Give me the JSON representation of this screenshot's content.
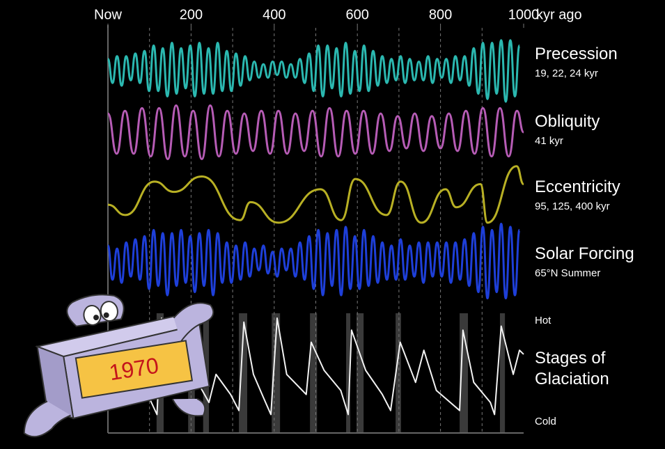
{
  "chart_data": {
    "type": "line",
    "xlabel": "kyr ago",
    "xlim": [
      0,
      1000
    ],
    "xticks": [
      {
        "value": 0,
        "label": "Now"
      },
      200,
      400,
      600,
      800,
      1000
    ],
    "minor_xticks": [
      100,
      200,
      300,
      400,
      500,
      600,
      700,
      800,
      900
    ],
    "ylim": [
      -1.3,
      1.3
    ],
    "series": [
      {
        "name": "Precession",
        "note": "19, 22, 24 kyr",
        "color": "#2bb8b0",
        "smooth": true,
        "x": [
          0,
          11,
          22,
          33,
          44,
          55,
          66,
          77,
          88,
          99,
          110,
          121,
          132,
          143,
          154,
          165,
          176,
          187,
          198,
          209,
          220,
          231,
          242,
          253,
          264,
          275,
          286,
          297,
          308,
          319,
          330,
          341,
          352,
          363,
          374,
          385,
          396,
          407,
          418,
          429,
          440,
          451,
          462,
          473,
          484,
          495,
          506,
          517,
          528,
          539,
          550,
          561,
          572,
          583,
          594,
          605,
          616,
          627,
          638,
          649,
          660,
          671,
          682,
          693,
          704,
          715,
          726,
          737,
          748,
          759,
          770,
          781,
          792,
          803,
          814,
          825,
          836,
          847,
          858,
          869,
          880,
          891,
          902,
          913,
          924,
          935,
          946,
          957,
          968,
          979,
          990
        ],
        "values": [
          0.4,
          -0.5,
          0.5,
          -0.6,
          0.5,
          -0.4,
          0.6,
          -0.5,
          0.7,
          -0.8,
          0.9,
          -0.8,
          0.8,
          -1,
          1,
          -0.9,
          0.8,
          -0.7,
          0.9,
          -1,
          1,
          -0.9,
          0.8,
          -0.9,
          1,
          -0.8,
          0.7,
          -0.8,
          0.6,
          -0.6,
          0.5,
          -0.4,
          0.3,
          -0.3,
          0.2,
          -0.3,
          0.3,
          -0.2,
          0.3,
          -0.3,
          0.2,
          -0.3,
          0.4,
          -0.5,
          0.6,
          -0.8,
          0.9,
          -1,
          0.9,
          -0.7,
          0.8,
          -1,
          1,
          -0.9,
          0.7,
          -0.8,
          0.9,
          -0.8,
          0.7,
          -0.6,
          0.5,
          -0.5,
          0.4,
          -0.4,
          0.5,
          -0.5,
          0.4,
          -0.4,
          0.3,
          -0.4,
          0.5,
          -0.5,
          0.4,
          -0.3,
          0.4,
          -0.5,
          0.5,
          -0.4,
          0.5,
          -0.6,
          0.8,
          -0.9,
          1,
          -1.1,
          1,
          -0.9,
          1.1,
          -1.2,
          1.1,
          -1,
          0.9
        ]
      },
      {
        "name": "Obliquity",
        "note": "41 kyr",
        "color": "#b65cb5",
        "smooth": true,
        "x": [
          0,
          21,
          41,
          62,
          82,
          103,
          123,
          144,
          164,
          185,
          205,
          226,
          246,
          267,
          287,
          308,
          328,
          349,
          369,
          390,
          410,
          431,
          451,
          472,
          492,
          513,
          533,
          554,
          574,
          595,
          615,
          636,
          656,
          677,
          697,
          718,
          738,
          759,
          779,
          800,
          820,
          841,
          861,
          882,
          902,
          923,
          943,
          964,
          984,
          1000
        ],
        "values": [
          0.7,
          -0.8,
          0.8,
          -0.8,
          0.9,
          -0.9,
          0.9,
          -1,
          1,
          -0.9,
          0.8,
          -1,
          1,
          -0.9,
          0.8,
          -0.8,
          0.7,
          -0.7,
          0.8,
          -0.8,
          0.8,
          -0.8,
          0.7,
          -0.7,
          0.8,
          -0.9,
          0.9,
          -0.9,
          0.8,
          -0.8,
          0.8,
          -0.8,
          0.7,
          -0.7,
          0.6,
          -0.6,
          0.7,
          -0.7,
          0.6,
          -0.6,
          0.7,
          -0.7,
          0.8,
          -0.8,
          0.9,
          -0.9,
          0.9,
          -0.9,
          0.8,
          0
        ]
      },
      {
        "name": "Eccentricity",
        "note": "95, 125, 400 kyr",
        "color": "#b8b024",
        "smooth": true,
        "x": [
          0,
          42,
          112,
          159,
          226,
          318,
          343,
          410,
          511,
          561,
          595,
          670,
          704,
          754,
          812,
          838,
          896,
          913,
          983,
          1000
        ],
        "values": [
          -0.3,
          -0.7,
          0.6,
          0.2,
          0.8,
          -0.9,
          -0.2,
          -1,
          0.3,
          -0.9,
          0.7,
          -0.7,
          0.6,
          -1,
          0.3,
          -0.4,
          0.5,
          -1,
          1.2,
          0.5
        ]
      },
      {
        "name": "Solar Forcing",
        "note": "65°N Summer",
        "color": "#1e3fd9",
        "smooth": true,
        "x": [
          0,
          11,
          22,
          33,
          44,
          55,
          66,
          77,
          88,
          99,
          110,
          121,
          132,
          143,
          154,
          165,
          176,
          187,
          198,
          209,
          220,
          231,
          242,
          253,
          264,
          275,
          286,
          297,
          308,
          319,
          330,
          341,
          352,
          363,
          374,
          385,
          396,
          407,
          418,
          429,
          440,
          451,
          462,
          473,
          484,
          495,
          506,
          517,
          528,
          539,
          550,
          561,
          572,
          583,
          594,
          605,
          616,
          627,
          638,
          649,
          660,
          671,
          682,
          693,
          704,
          715,
          726,
          737,
          748,
          759,
          770,
          781,
          792,
          803,
          814,
          825,
          836,
          847,
          858,
          869,
          880,
          891,
          902,
          913,
          924,
          935,
          946,
          957,
          968,
          979,
          990
        ],
        "values": [
          0.5,
          -0.6,
          0.4,
          -0.7,
          0.6,
          -0.5,
          0.7,
          -0.6,
          0.8,
          -0.9,
          1,
          -0.8,
          0.9,
          -1.1,
          0.9,
          -0.8,
          1,
          -0.7,
          0.8,
          -1,
          0.9,
          -0.8,
          1,
          -1.1,
          0.9,
          -0.7,
          0.6,
          -0.7,
          0.5,
          -0.6,
          0.6,
          -0.5,
          0.4,
          -0.3,
          0.5,
          -0.4,
          0.3,
          -0.5,
          0.4,
          -0.3,
          0.4,
          -0.5,
          0.6,
          -0.6,
          0.8,
          -0.9,
          1,
          -1.1,
          0.9,
          -0.8,
          1,
          -1.1,
          1.1,
          -0.9,
          0.8,
          -0.9,
          1,
          -0.8,
          0.8,
          -0.7,
          0.6,
          -0.6,
          0.5,
          -0.6,
          0.7,
          -0.6,
          0.5,
          -0.5,
          0.6,
          -0.7,
          0.6,
          -0.5,
          0.6,
          -0.5,
          0.6,
          -0.7,
          0.6,
          -0.6,
          0.7,
          -0.8,
          0.9,
          -1,
          1.1,
          -1.2,
          1,
          -1,
          1.2,
          -1.2,
          1.1,
          -1.1,
          1
        ]
      },
      {
        "name": "Stages of Glaciation",
        "color": "#f2f2f2",
        "smooth": false,
        "x": [
          0,
          20,
          50,
          80,
          100,
          118,
          129,
          150,
          175,
          200,
          243,
          260,
          295,
          315,
          327,
          350,
          375,
          392,
          407,
          430,
          477,
          489,
          520,
          560,
          578,
          586,
          620,
          660,
          680,
          703,
          740,
          760,
          790,
          846,
          854,
          880,
          920,
          930,
          946,
          975,
          990,
          1000
        ],
        "values": [
          -0.5,
          0.2,
          -0.7,
          -0.1,
          -0.7,
          -1.1,
          1.3,
          0.2,
          -0.4,
          0,
          -0.8,
          -0.1,
          -0.6,
          -1,
          1.2,
          -0.1,
          -0.7,
          -1.1,
          1.3,
          -0.1,
          -0.6,
          0.7,
          0,
          -0.5,
          -1.1,
          1,
          0,
          -0.6,
          -1,
          0.7,
          -0.3,
          0.5,
          -0.5,
          -1,
          1,
          -0.3,
          -0.8,
          -1.1,
          1.1,
          -0.1,
          0.5,
          0.4
        ]
      }
    ],
    "annotations": [
      "Hot",
      "Cold"
    ],
    "shaded_intervals": [
      [
        117,
        134
      ],
      [
        193,
        209
      ],
      [
        229,
        243
      ],
      [
        315,
        335
      ],
      [
        394,
        414
      ],
      [
        486,
        503
      ],
      [
        573,
        583
      ],
      [
        598,
        615
      ],
      [
        692,
        705
      ],
      [
        846,
        866
      ],
      [
        943,
        955
      ]
    ]
  },
  "cartoon": {
    "label": "1970"
  }
}
